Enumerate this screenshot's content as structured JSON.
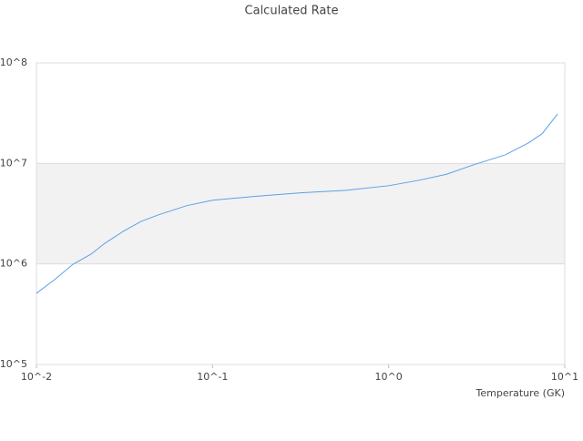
{
  "chart_data": {
    "type": "line",
    "title": "Calculated Rate",
    "x_label": "Temperature (GK)",
    "log_x": true,
    "log_y": true,
    "grid": true,
    "band_fill": "#f2f2f2",
    "xlim": [
      0.01,
      10
    ],
    "ylim": [
      100000,
      100000000
    ],
    "xticks": [
      {
        "value": 0.01,
        "label": "10^-2"
      },
      {
        "value": 0.1,
        "label": "10^-1"
      },
      {
        "value": 1,
        "label": "10^0"
      },
      {
        "value": 10,
        "label": "10^1"
      }
    ],
    "yticks": [
      {
        "value": 100000,
        "label": "10^5"
      },
      {
        "value": 1000000,
        "label": "10^6"
      },
      {
        "value": 10000000,
        "label": "10^7"
      },
      {
        "value": 100000000,
        "label": "10^8"
      }
    ],
    "series": [
      {
        "color": "#5aa0e6",
        "x": [
          0.01,
          0.0127,
          0.0161,
          0.0204,
          0.0244,
          0.031,
          0.0393,
          0.0499,
          0.0714,
          0.1,
          0.175,
          0.316,
          0.574,
          1.0,
          1.49,
          2.13,
          3.04,
          4.61,
          6.22,
          7.43,
          9.1
        ],
        "values": [
          510000,
          700000,
          990000,
          1250000,
          1600000,
          2100000,
          2650000,
          3100000,
          3800000,
          4300000,
          4700000,
          5100000,
          5400000,
          6000000,
          6800000,
          7800000,
          9700000,
          12200000,
          16000000,
          19700000,
          31000000
        ]
      }
    ]
  }
}
